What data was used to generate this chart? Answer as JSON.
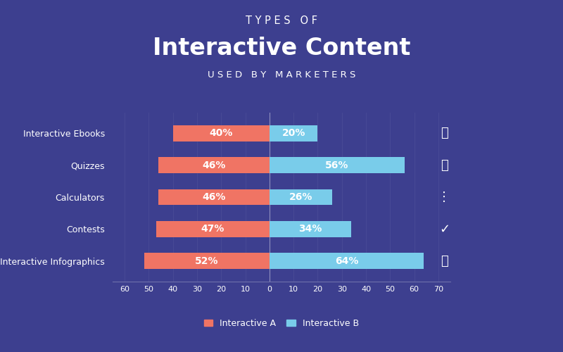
{
  "title_line1": "T Y P E S   O F",
  "title_line2": "Interactive Content",
  "title_line3": "U S E D   B Y   M A R K E T E R S",
  "categories": [
    "Interactive Infographics",
    "Contests",
    "Calculators",
    "Quizzes",
    "Interactive Ebooks"
  ],
  "values_a": [
    -52,
    -47,
    -46,
    -46,
    -40
  ],
  "values_b": [
    64,
    34,
    26,
    56,
    20
  ],
  "labels_a": [
    "52%",
    "47%",
    "46%",
    "46%",
    "40%"
  ],
  "labels_b": [
    "64%",
    "34%",
    "26%",
    "56%",
    "20%"
  ],
  "color_a": "#F07464",
  "color_b": "#79CCEA",
  "bg_color": "#3D3F8F",
  "text_color": "#FFFFFF",
  "xlim_min": -65,
  "xlim_max": 75,
  "xticks": [
    -60,
    -50,
    -40,
    -30,
    -20,
    -10,
    0,
    10,
    20,
    30,
    40,
    50,
    60,
    70
  ],
  "xticklabels": [
    "60",
    "50",
    "40",
    "30",
    "20",
    "10",
    "0",
    "10",
    "20",
    "30",
    "40",
    "50",
    "60",
    "70"
  ],
  "legend_a": "Interactive A",
  "legend_b": "Interactive B",
  "bar_height": 0.5
}
